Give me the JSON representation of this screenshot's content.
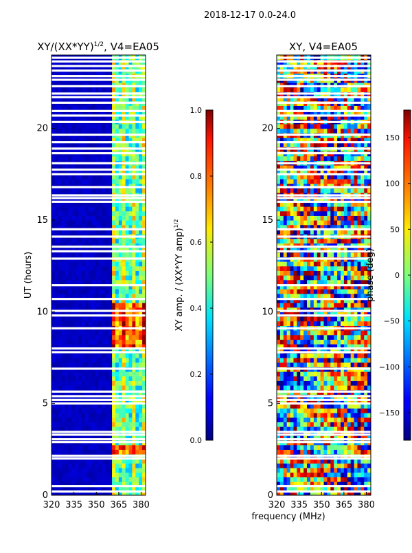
{
  "figure_title": "2018-12-17 0.0-24.0",
  "xlabel_shared": "frequency (MHz)",
  "chart_data": [
    {
      "type": "heatmap",
      "title": "XY/(XX*YY)",
      "title_sup": "1/2",
      "title_suffix": ", V4=EA05",
      "ylabel": "UT (hours)",
      "x_ticks": [
        320,
        335,
        350,
        365,
        380
      ],
      "y_ticks": [
        0,
        5,
        10,
        15,
        20
      ],
      "xlim": [
        320,
        383
      ],
      "ylim": [
        0,
        24
      ],
      "colorbar": {
        "label": "XY amp. / (XX*YY amp)",
        "label_sup": "1/2",
        "ticks": [
          0.0,
          0.2,
          0.4,
          0.6,
          0.8,
          1.0
        ],
        "tick_labels": [
          "0.0",
          "0.2",
          "0.4",
          "0.6",
          "0.8",
          "1.0"
        ],
        "range": [
          0,
          1
        ]
      },
      "bright_channel_range": [
        360,
        383
      ],
      "notes": "Mostly low amplitude (~0.05) below 360 MHz; higher amplitude vertical stripes (0.3-0.7) above 360 MHz, strongest near 2.5 h and 8-10.5 h"
    },
    {
      "type": "heatmap",
      "title": "XY",
      "title_suffix": ", V4=EA05",
      "ylabel": "",
      "x_ticks": [
        320,
        335,
        350,
        365,
        380
      ],
      "y_ticks": [
        0,
        5,
        10,
        15,
        20
      ],
      "xlim": [
        320,
        383
      ],
      "ylim": [
        0,
        24
      ],
      "colorbar": {
        "label": "phase (deg)",
        "ticks": [
          150,
          100,
          50,
          0,
          -50,
          -100,
          -150
        ],
        "tick_labels": [
          "150",
          "100",
          "50",
          "0",
          "−50",
          "−100",
          "−150"
        ],
        "range": [
          -180,
          180
        ]
      },
      "notes": "Noisy phase map spanning -180 to 180 deg across all frequencies and times"
    }
  ],
  "flagged_gap_hours": [
    0.2,
    0.5,
    2.0,
    2.15,
    2.9,
    3.05,
    3.3,
    3.45,
    5.0,
    5.2,
    5.4,
    5.65,
    6.9,
    7.8,
    8.0,
    9.1,
    9.8,
    10.05,
    10.7,
    11.45,
    12.9,
    13.3,
    13.55,
    14.1,
    14.5,
    16.0,
    16.2,
    16.35,
    16.8,
    17.5,
    17.75,
    18.1,
    18.65,
    18.9,
    19.25,
    19.65,
    20.35,
    20.7,
    20.95,
    21.4,
    21.7,
    21.9,
    22.3,
    22.65,
    22.85,
    23.15,
    23.4,
    23.65,
    23.85
  ]
}
